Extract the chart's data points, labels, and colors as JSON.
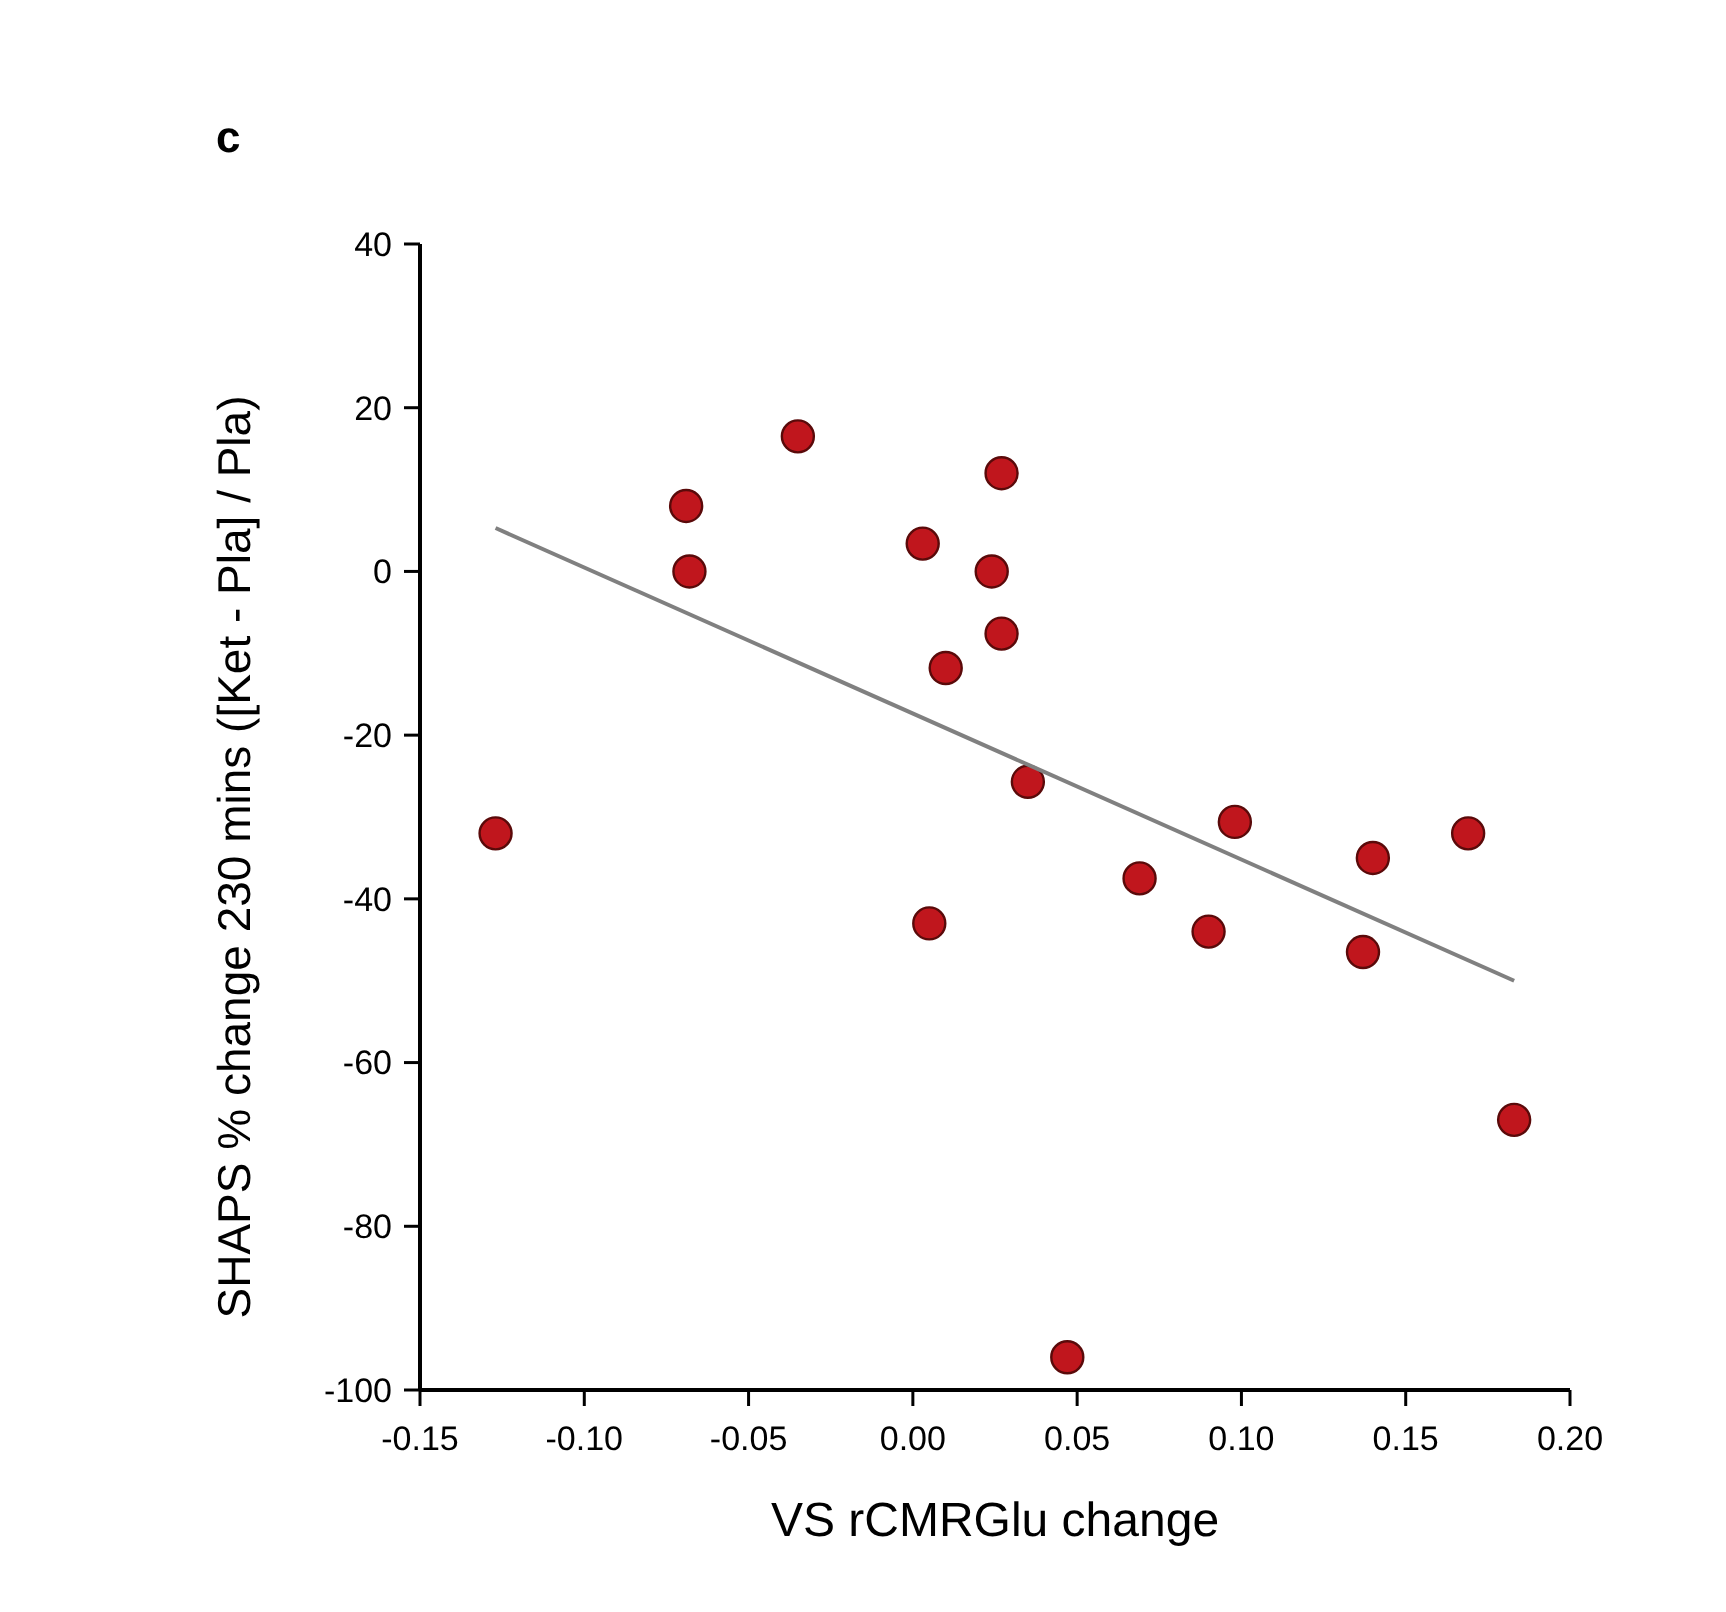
{
  "chart_data": {
    "type": "scatter",
    "title": "c",
    "xlabel": "VS rCMRGlu change",
    "ylabel": "SHAPS % change  230 mins ([Ket - Pla] / Pla)",
    "xlim": [
      -0.15,
      0.2
    ],
    "xticks": [
      {
        "value": -0.15,
        "label": "-0.15"
      },
      {
        "value": -0.1,
        "label": "-0.10"
      },
      {
        "value": -0.05,
        "label": "-0.05"
      },
      {
        "value": 0,
        "label": "0.00"
      },
      {
        "value": 0.05,
        "label": "0.05"
      },
      {
        "value": 0.1,
        "label": "0.10"
      },
      {
        "value": 0.15,
        "label": "0.15"
      },
      {
        "value": 0.2,
        "label": "0.20"
      }
    ],
    "ylim": [
      -100,
      40
    ],
    "yticks": [
      -100,
      -80,
      -60,
      -40,
      -20,
      0,
      20,
      40
    ],
    "grid": false,
    "marker": "circle",
    "series": [
      {
        "type": "scatter",
        "color": "#c0161d",
        "x": [
          -0.127,
          -0.069,
          -0.068,
          -0.035,
          0.003,
          0.027,
          0.024,
          0.027,
          0.01,
          0.035,
          0.005,
          0.098,
          0.069,
          0.09,
          0.14,
          0.137,
          0.169,
          0.183,
          0.047
        ],
        "values": [
          -32,
          8,
          0,
          16.5,
          3.4,
          12,
          0,
          -7.6,
          -11.8,
          -25.7,
          -43,
          -30.6,
          -37.5,
          -44,
          -35,
          -46.5,
          -32,
          -67,
          -96
        ]
      },
      {
        "type": "line",
        "color": "#808080",
        "marker": "none",
        "x": [
          -0.127,
          0.183
        ],
        "values": [
          5.3,
          -50
        ]
      }
    ]
  }
}
